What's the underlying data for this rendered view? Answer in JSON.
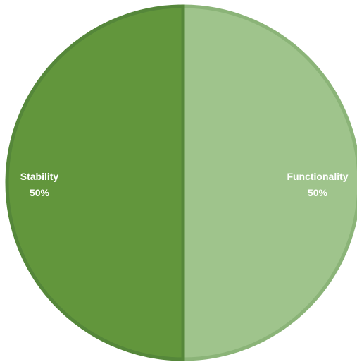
{
  "chart_data": {
    "type": "pie",
    "slices": [
      {
        "label": "Functionality",
        "percent_label": "50%",
        "value": 50,
        "color": "#9fc48c",
        "edge_color": "#8bb478"
      },
      {
        "label": "Stability",
        "percent_label": "50%",
        "value": 50,
        "color": "#62963c",
        "edge_color": "#55873a"
      }
    ],
    "title": "",
    "legend": "none",
    "data_labels": "inside"
  }
}
